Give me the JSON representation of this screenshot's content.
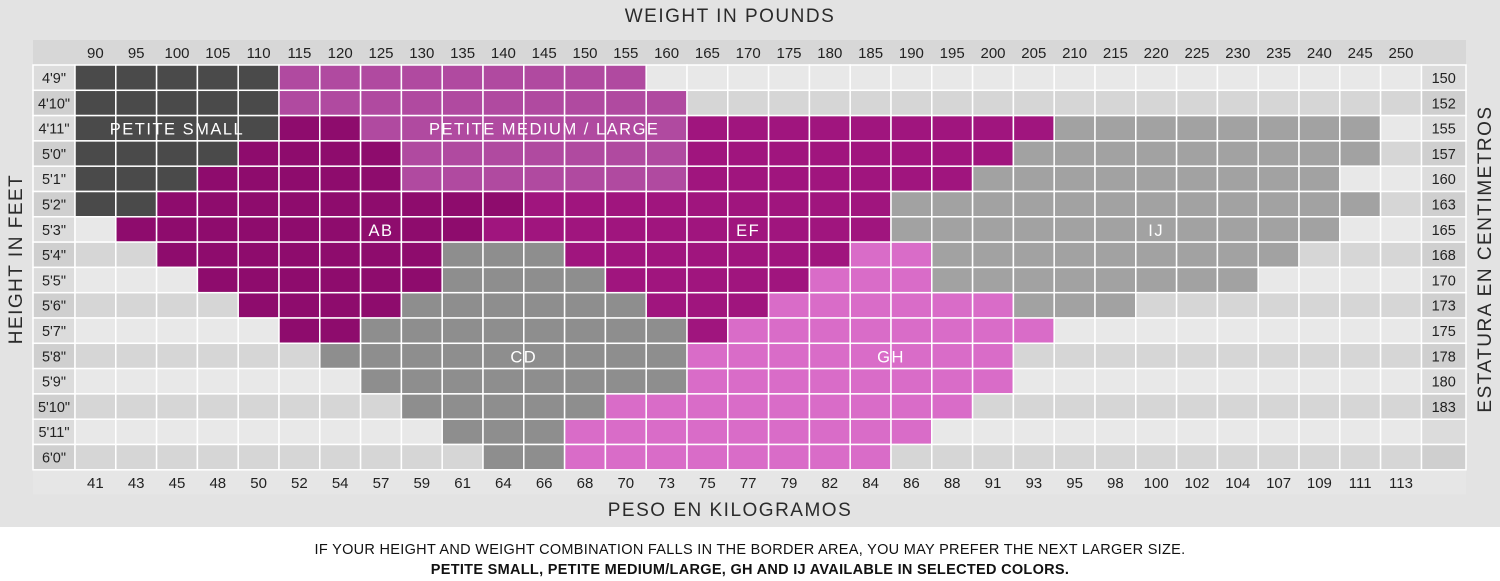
{
  "chart_data": {
    "type": "heatmap",
    "title": "WEIGHT IN POUNDS",
    "xlabel": "WEIGHT IN POUNDS",
    "xlabel_secondary": "PESO EN KILOGRAMOS",
    "ylabel": "HEIGHT IN FEET",
    "ylabel_secondary": "ESTATURA EN CENTIMETROS",
    "weights_lb": [
      "90",
      "95",
      "100",
      "105",
      "110",
      "115",
      "120",
      "125",
      "130",
      "135",
      "140",
      "145",
      "150",
      "155",
      "160",
      "165",
      "170",
      "175",
      "180",
      "185",
      "190",
      "195",
      "200",
      "205",
      "210",
      "215",
      "220",
      "225",
      "230",
      "235",
      "240",
      "245",
      "250"
    ],
    "weights_kg": [
      "41",
      "43",
      "45",
      "48",
      "50",
      "52",
      "54",
      "57",
      "59",
      "61",
      "64",
      "66",
      "68",
      "70",
      "73",
      "75",
      "77",
      "79",
      "82",
      "84",
      "86",
      "88",
      "91",
      "93",
      "95",
      "98",
      "100",
      "102",
      "104",
      "107",
      "109",
      "111",
      "113"
    ],
    "heights_ft": [
      "4'9\"",
      "4'10\"",
      "4'11\"",
      "5'0\"",
      "5'1\"",
      "5'2\"",
      "5'3\"",
      "5'4\"",
      "5'5\"",
      "5'6\"",
      "5'7\"",
      "5'8\"",
      "5'9\"",
      "5'10\"",
      "5'11\"",
      "6'0\""
    ],
    "heights_cm": [
      "150",
      "152",
      "155",
      "157",
      "160",
      "163",
      "165",
      "168",
      "170",
      "173",
      "175",
      "178",
      "180",
      "183",
      "",
      ""
    ],
    "size_colors": {
      "PS": "#4a4a4a",
      "PML": "#b04aa0",
      "AB": "#8e0c6d",
      "CD": "#8e8e8e",
      "EF": "#a0157e",
      "GH": "#d96cc8",
      "IJ": "#a2a2a2"
    },
    "empty_colors": {
      "light": "#e8e8e8",
      "dark": "#d6d6d6"
    },
    "grid": [
      "PPPPPMMMMMMMMM...................",
      "PPPPPMMMMMMMMMM..................",
      "PPPPPAAMMMMMMMMEEEEEEEEEIIIIIIII.",
      "PPPPAAAAMMMMMMMEEEEEEEEIIIIIIIII.",
      "PPPAAAAAMMMMMMMEEEEEEEIIIIIIIII..",
      "PPAAAAAAAAAEEEEEEEEEIIIIIIIIIIII.",
      ".AAAAAAAAAEEEEEEEEEEIIIIIIIIIII..",
      "..AAAAAAACCCEEEEEEEGGIIIIIIIII...",
      "...AAAAAACCCCEEEEEGGGIIIIIIII....",
      "....AAAACCCCCCEEEGGGGGGIII.......",
      ".....AACCCCCCCCEGGGGGGGG.........",
      "......CCCCCCCCCGGGGGGGG..........",
      ".......CCCCCCCCGGGGGGGG..........",
      "........CCCCCGGGGGGGGG...........",
      ".........CCCGGGGGGGGG............",
      "..........CCGGGGGGGG............."
    ],
    "region_labels": [
      {
        "text": "PETITE SMALL",
        "col": 2,
        "row": 2
      },
      {
        "text": "PETITE MEDIUM / LARGE",
        "col": 11,
        "row": 2
      },
      {
        "text": "AB",
        "col": 7,
        "row": 6
      },
      {
        "text": "EF",
        "col": 16,
        "row": 6
      },
      {
        "text": "IJ",
        "col": 26,
        "row": 6
      },
      {
        "text": "CD",
        "col": 10.5,
        "row": 11
      },
      {
        "text": "GH",
        "col": 19.5,
        "row": 11
      }
    ]
  },
  "notes": {
    "line1": "IF YOUR HEIGHT AND WEIGHT COMBINATION FALLS IN THE BORDER AREA, YOU MAY PREFER THE NEXT LARGER SIZE.",
    "line2": "PETITE SMALL, PETITE MEDIUM/LARGE, GH AND IJ AVAILABLE IN SELECTED COLORS."
  }
}
